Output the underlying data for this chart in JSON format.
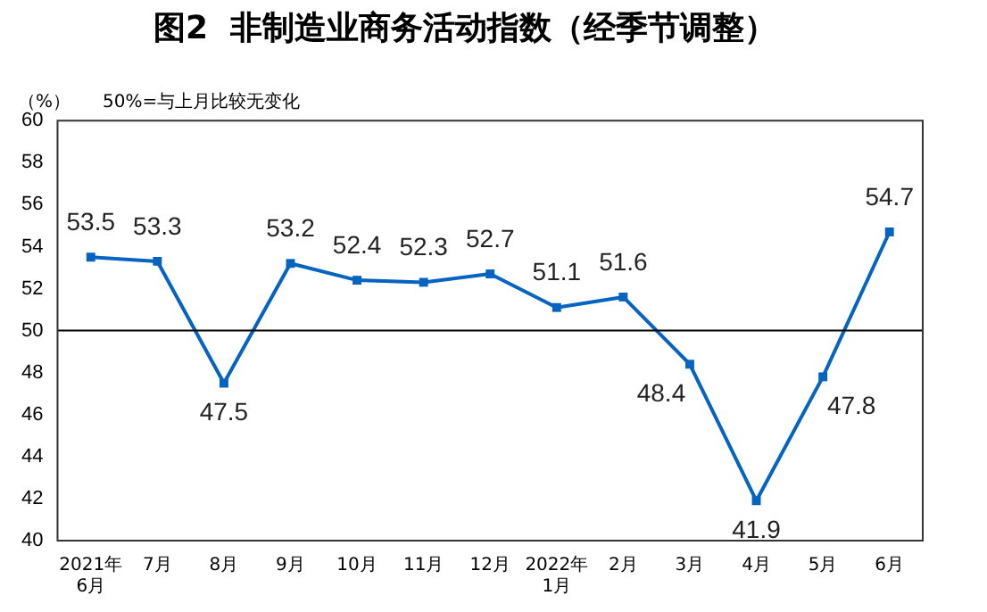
{
  "chart_data": {
    "type": "line",
    "title": "图2  非制造业商务活动指数（经季节调整）",
    "ylabel": "（%）",
    "annotations": [
      "50%=与上月比较无变化"
    ],
    "categories": [
      "2021年\n6月",
      "7月",
      "8月",
      "9月",
      "10月",
      "11月",
      "12月",
      "2022年\n1月",
      "2月",
      "3月",
      "4月",
      "5月",
      "6月"
    ],
    "series": [
      {
        "color": "#0563c1",
        "values": [
          53.5,
          53.3,
          47.5,
          53.2,
          52.4,
          52.3,
          52.7,
          51.1,
          51.6,
          48.4,
          41.9,
          47.8,
          54.7
        ]
      }
    ],
    "ylim": [
      40,
      60
    ],
    "yticks": [
      40,
      42,
      44,
      46,
      48,
      50,
      52,
      54,
      56,
      58,
      60
    ],
    "grid": false,
    "legend": false,
    "marker": "square",
    "line_style": "solid",
    "data_labels": true,
    "ref_lines": [
      {
        "axis": "y",
        "value": 50,
        "color": "#000000"
      }
    ]
  }
}
